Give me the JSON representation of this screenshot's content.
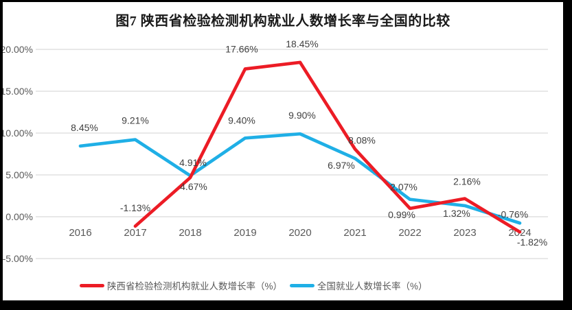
{
  "title": "图7 陕西省检验检测机构就业人数增长率与全国的比较",
  "chart_data": {
    "type": "line",
    "categories": [
      "2016",
      "2017",
      "2018",
      "2019",
      "2020",
      "2021",
      "2022",
      "2023",
      "2024"
    ],
    "series": [
      {
        "name": "陕西省检验检测机构就业人数增长率（%）",
        "color": "#EC1C25",
        "values": [
          null,
          -1.13,
          4.67,
          17.66,
          18.45,
          8.08,
          0.99,
          2.16,
          -1.82
        ],
        "labels": [
          "",
          "-1.13%",
          "4.67%",
          "17.66%",
          "18.45%",
          "8.08%",
          "0.99%",
          "2.16%",
          "-1.82%"
        ]
      },
      {
        "name": "全国就业人数增长率（%）",
        "color": "#1FAFE6",
        "values": [
          8.45,
          9.21,
          4.91,
          9.4,
          9.9,
          6.97,
          2.07,
          1.32,
          -0.76
        ],
        "labels": [
          "8.45%",
          "9.21%",
          "4.91%",
          "9.40%",
          "9.90%",
          "6.97%",
          "2.07%",
          "1.32%",
          "-0.76%"
        ]
      }
    ],
    "ylim": [
      -5,
      20
    ],
    "ytick_step": 5,
    "yticks": [
      "20.00%",
      "15.00%",
      "10.00%",
      "5.00%",
      "0.00%",
      "-5.00%"
    ],
    "grid": true,
    "legend_position": "bottom",
    "data_labels": true,
    "label_format": "0.00%"
  },
  "colors": {
    "background": "#FFFFFF",
    "frame": "#000000",
    "grid": "#D9D9D9",
    "axis_text": "#595959",
    "data_label": "#404040",
    "title_text": "#1A1A1A",
    "shaanxi_red": "#EC1C25",
    "national_blue": "#1FAFE6"
  }
}
